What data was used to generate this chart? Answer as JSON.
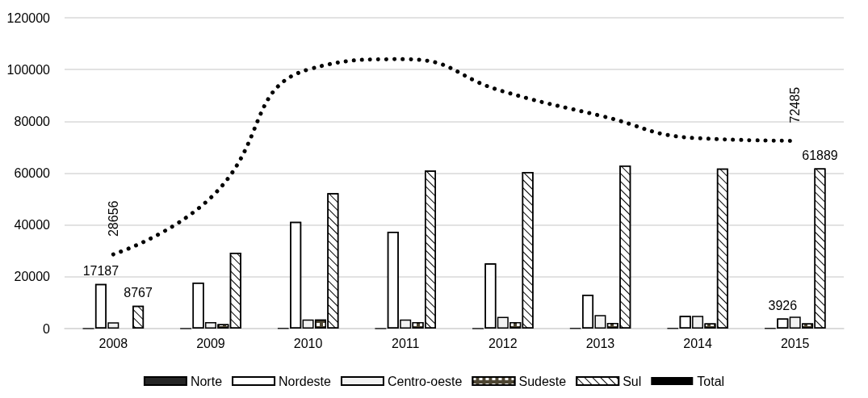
{
  "chart_data": {
    "type": "bar",
    "categories": [
      "2008",
      "2009",
      "2010",
      "2011",
      "2012",
      "2013",
      "2014",
      "2015"
    ],
    "series": [
      {
        "name": "Norte",
        "color": "#262626",
        "values": [
          0,
          0,
          100,
          0,
          0,
          100,
          100,
          100
        ]
      },
      {
        "name": "Nordeste",
        "color": "#ffffff",
        "values": [
          17187,
          17800,
          41200,
          37400,
          25200,
          13100,
          4900,
          3926
        ],
        "value_labels": [
          "17187",
          null,
          null,
          null,
          null,
          null,
          null,
          "3926"
        ]
      },
      {
        "name": "Centro-oeste",
        "color": "#f2f2f2",
        "values": [
          2400,
          2500,
          3500,
          3500,
          4500,
          5200,
          4900,
          4600
        ]
      },
      {
        "name": "Sudeste",
        "color": "#4d4532",
        "values": [
          null,
          1700,
          3500,
          2500,
          2500,
          2200,
          2000,
          2000
        ]
      },
      {
        "name": "Sul",
        "color": "#ffffff",
        "values": [
          8767,
          29300,
          52300,
          61000,
          60500,
          63000,
          61800,
          61889
        ],
        "value_labels": [
          "8767",
          null,
          null,
          null,
          null,
          null,
          null,
          "61889"
        ]
      },
      {
        "name": "Total",
        "type": "line",
        "color": "#000000",
        "line_style": "dotted",
        "values": [
          28656,
          50500,
          100000,
          104000,
          91600,
          82200,
          73500,
          72485
        ],
        "value_labels": [
          "28656",
          null,
          null,
          null,
          null,
          null,
          null,
          "72485"
        ]
      }
    ],
    "ylim": [
      0,
      120000
    ],
    "yticks": [
      0,
      20000,
      40000,
      60000,
      80000,
      100000,
      120000
    ],
    "grid": "y",
    "legend": "bottom",
    "marker": "none"
  }
}
